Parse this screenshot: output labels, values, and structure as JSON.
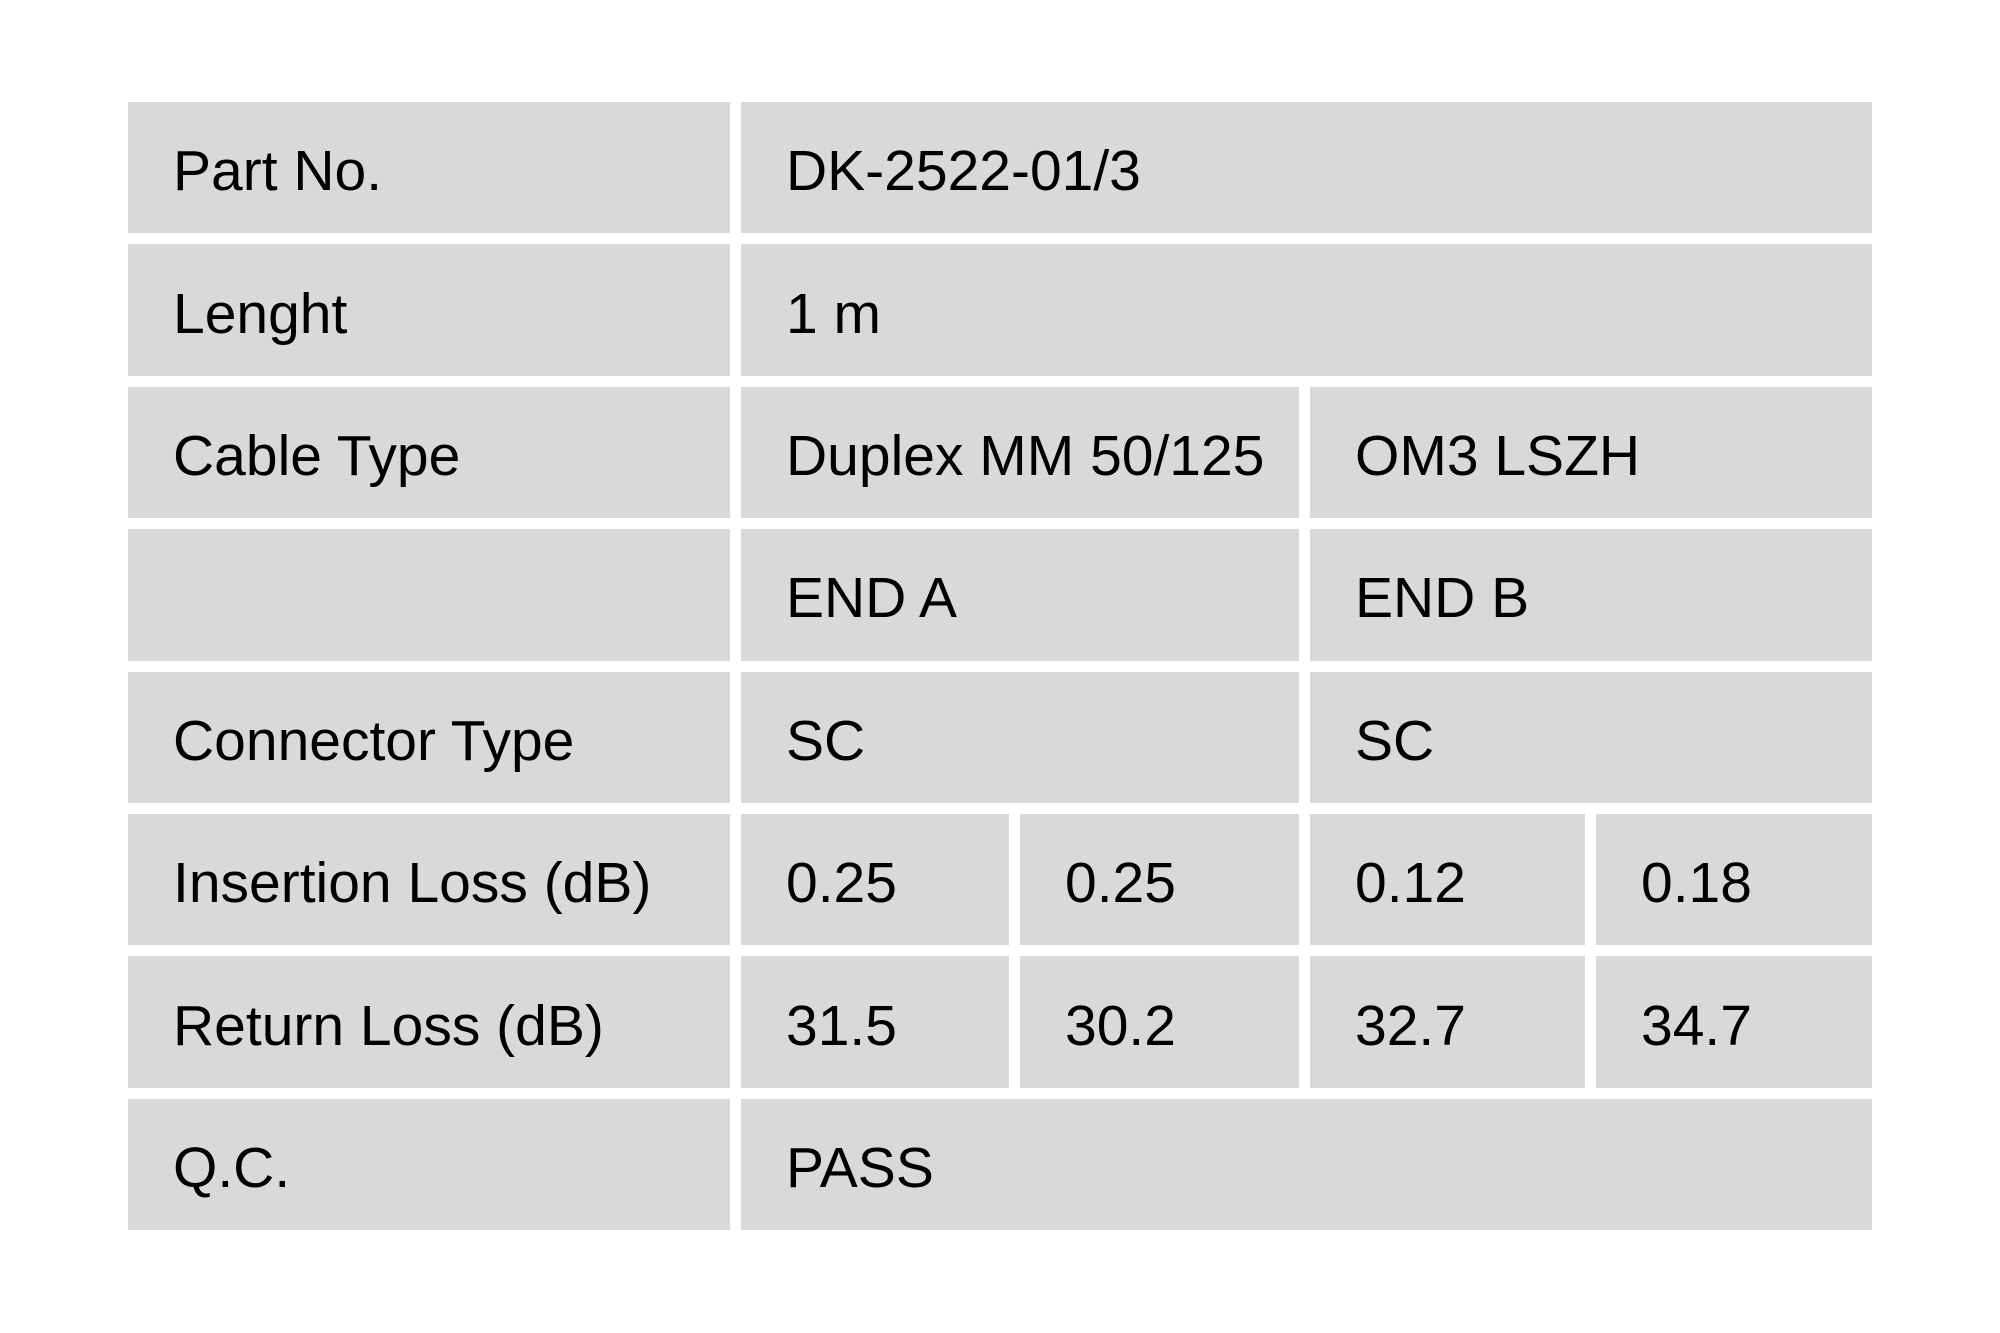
{
  "colors": {
    "cell_background": "#d9d9d9",
    "page_background": "#ffffff",
    "text": "#000000"
  },
  "table": {
    "rows": [
      {
        "label": "Part No.",
        "value": "DK-2522-01/3"
      },
      {
        "label": "Lenght",
        "value": "1 m"
      },
      {
        "label": "Cable Type",
        "end_a": "Duplex MM 50/125",
        "end_b": "OM3 LSZH"
      },
      {
        "label": "",
        "end_a": "END A",
        "end_b": "END B"
      },
      {
        "label": "Connector Type",
        "end_a": "SC",
        "end_b": "SC"
      },
      {
        "label": "Insertion Loss (dB)",
        "a1": "0.25",
        "a2": "0.25",
        "b1": "0.12",
        "b2": "0.18"
      },
      {
        "label": "Return Loss (dB)",
        "a1": "31.5",
        "a2": "30.2",
        "b1": "32.7",
        "b2": "34.7"
      },
      {
        "label": "Q.C.",
        "value": "PASS"
      }
    ]
  }
}
